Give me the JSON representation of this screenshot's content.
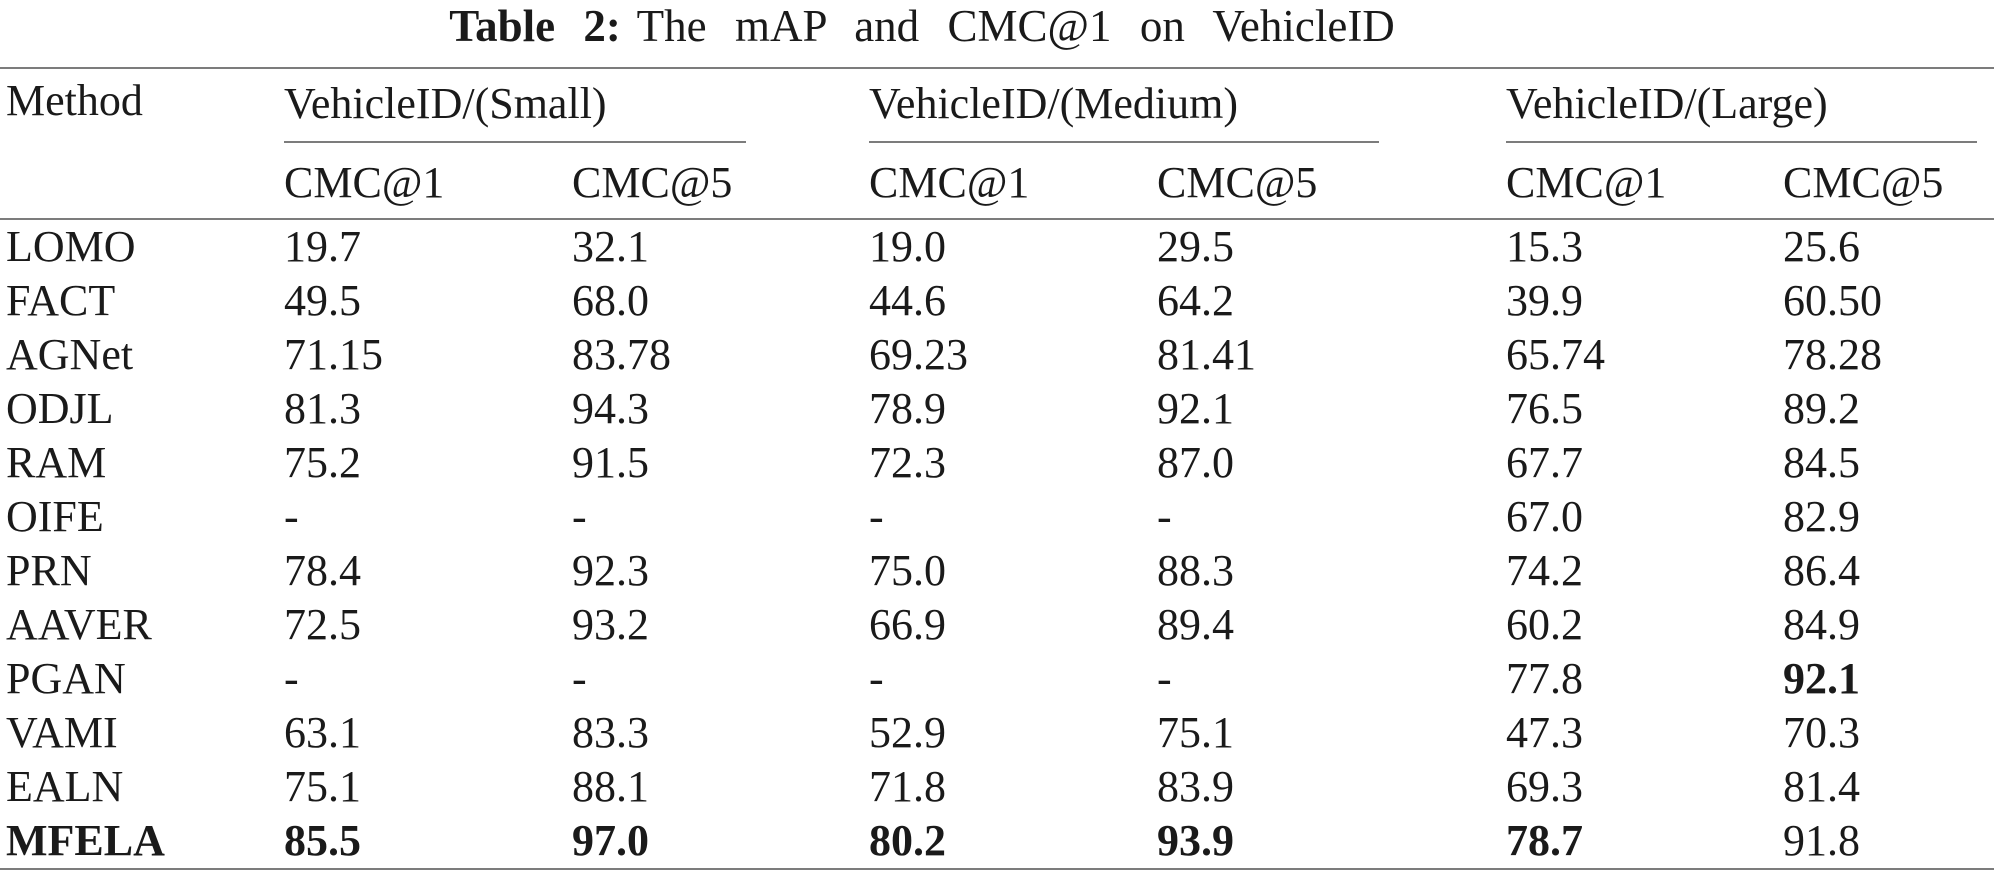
{
  "caption": {
    "label": "Table 2:",
    "text": "The mAP and CMC@1 on VehicleID"
  },
  "table": {
    "method_header": "Method",
    "groups": [
      {
        "label": "VehicleID/(Small)",
        "sub": [
          "CMC@1",
          "CMC@5"
        ]
      },
      {
        "label": "VehicleID/(Medium)",
        "sub": [
          "CMC@1",
          "CMC@5"
        ]
      },
      {
        "label": "VehicleID/(Large)",
        "sub": [
          "CMC@1",
          "CMC@5"
        ]
      }
    ],
    "rows": [
      {
        "method": "LOMO",
        "values": [
          "19.7",
          "32.1",
          "19.0",
          "29.5",
          "15.3",
          "25.6"
        ]
      },
      {
        "method": "FACT",
        "values": [
          "49.5",
          "68.0",
          "44.6",
          "64.2",
          "39.9",
          "60.50"
        ]
      },
      {
        "method": "AGNet",
        "values": [
          "71.15",
          "83.78",
          "69.23",
          "81.41",
          "65.74",
          "78.28"
        ]
      },
      {
        "method": "ODJL",
        "values": [
          "81.3",
          "94.3",
          "78.9",
          "92.1",
          "76.5",
          "89.2"
        ]
      },
      {
        "method": "RAM",
        "values": [
          "75.2",
          "91.5",
          "72.3",
          "87.0",
          "67.7",
          "84.5"
        ]
      },
      {
        "method": "OIFE",
        "values": [
          "-",
          "-",
          "-",
          "-",
          "67.0",
          "82.9"
        ]
      },
      {
        "method": "PRN",
        "values": [
          "78.4",
          "92.3",
          "75.0",
          "88.3",
          "74.2",
          "86.4"
        ]
      },
      {
        "method": "AAVER",
        "values": [
          "72.5",
          "93.2",
          "66.9",
          "89.4",
          "60.2",
          "84.9"
        ]
      },
      {
        "method": "PGAN",
        "values": [
          "-",
          "-",
          "-",
          "-",
          "77.8",
          "92.1"
        ],
        "bold": [
          false,
          false,
          false,
          false,
          false,
          true
        ]
      },
      {
        "method": "VAMI",
        "values": [
          "63.1",
          "83.3",
          "52.9",
          "75.1",
          "47.3",
          "70.3"
        ]
      },
      {
        "method": "EALN",
        "values": [
          "75.1",
          "88.1",
          "71.8",
          "83.9",
          "69.3",
          "81.4"
        ]
      },
      {
        "method": "MFELA",
        "method_bold": true,
        "values": [
          "85.5",
          "97.0",
          "80.2",
          "93.9",
          "78.7",
          "91.8"
        ],
        "bold": [
          true,
          true,
          true,
          true,
          true,
          false
        ]
      }
    ]
  }
}
